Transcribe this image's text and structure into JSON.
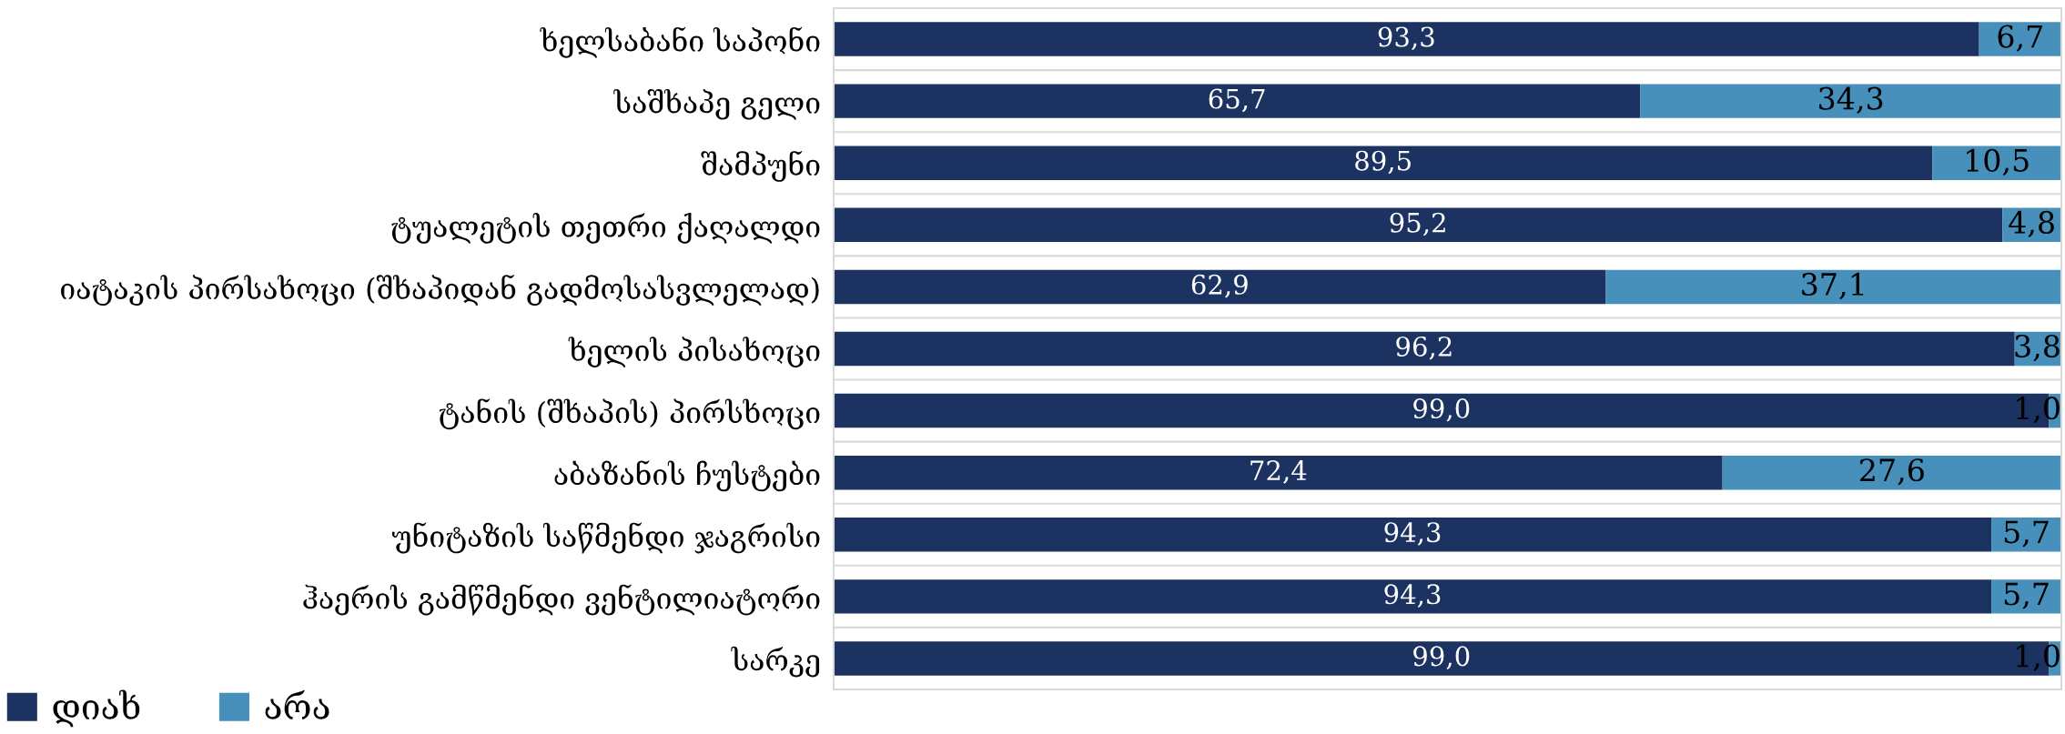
{
  "chart_data": {
    "type": "bar",
    "orientation": "horizontal",
    "stacked": true,
    "categories": [
      "ხელსაბანი საპონი",
      "საშხაპე გელი",
      "შამპუნი",
      "ტუალეტის თეთრი ქაღალდი",
      "იატაკის პირსახოცი (შხაპიდან გადმოსასვლელად)",
      "ხელის პისახოცი",
      "ტანის (შხაპის) პირსხოცი",
      "აბაზანის ჩუსტები",
      "უნიტაზის საწმენდი ჯაგრისი",
      "ჰაერის გამწმენდი ვენტილიატორი",
      "სარკე"
    ],
    "series": [
      {
        "name": "დიახ",
        "color": "#1c3260",
        "values": [
          93.3,
          65.7,
          89.5,
          95.2,
          62.9,
          96.2,
          99.0,
          72.4,
          94.3,
          94.3,
          99.0
        ],
        "value_labels": [
          "93,3",
          "65,7",
          "89,5",
          "95,2",
          "62,9",
          "96,2",
          "99,0",
          "72,4",
          "94,3",
          "94,3",
          "99,0"
        ]
      },
      {
        "name": "არა",
        "color": "#4790bb",
        "values": [
          6.7,
          34.3,
          10.5,
          4.8,
          37.1,
          3.8,
          1.0,
          27.6,
          5.7,
          5.7,
          1.0
        ],
        "value_labels": [
          "6,7",
          "34,3",
          "10,5",
          "4,8",
          "37,1",
          "3,8",
          "1,0",
          "27,6",
          "5,7",
          "5,7",
          "1,0"
        ]
      }
    ],
    "xlim": [
      0,
      100
    ],
    "tick_labels": "y",
    "grid": "y",
    "legend": "bottom left"
  }
}
